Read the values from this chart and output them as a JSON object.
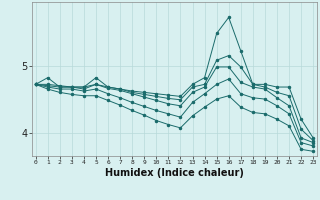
{
  "title": "",
  "xlabel": "Humidex (Indice chaleur)",
  "bg_color": "#d8f0f0",
  "grid_color": "#b8dada",
  "line_color": "#1a6b6b",
  "x": [
    0,
    1,
    2,
    3,
    4,
    5,
    6,
    7,
    8,
    9,
    10,
    11,
    12,
    13,
    14,
    15,
    16,
    17,
    18,
    19,
    20,
    21,
    22,
    23
  ],
  "line1": [
    4.72,
    4.82,
    4.68,
    4.68,
    4.68,
    4.82,
    4.68,
    4.65,
    4.62,
    4.6,
    4.58,
    4.56,
    4.54,
    4.72,
    4.82,
    5.48,
    5.72,
    5.22,
    4.72,
    4.72,
    4.68,
    4.68,
    4.2,
    3.92
  ],
  "line2": [
    4.72,
    4.72,
    4.7,
    4.68,
    4.68,
    4.72,
    4.68,
    4.65,
    4.6,
    4.57,
    4.54,
    4.51,
    4.49,
    4.68,
    4.72,
    5.08,
    5.15,
    4.98,
    4.72,
    4.68,
    4.6,
    4.55,
    4.05,
    3.88
  ],
  "line3": [
    4.72,
    4.7,
    4.68,
    4.68,
    4.65,
    4.72,
    4.66,
    4.63,
    4.58,
    4.53,
    4.48,
    4.43,
    4.4,
    4.6,
    4.68,
    4.98,
    4.98,
    4.75,
    4.68,
    4.65,
    4.52,
    4.4,
    3.92,
    3.85
  ],
  "line4": [
    4.72,
    4.68,
    4.65,
    4.65,
    4.62,
    4.65,
    4.58,
    4.52,
    4.45,
    4.39,
    4.33,
    4.28,
    4.23,
    4.45,
    4.58,
    4.72,
    4.8,
    4.58,
    4.52,
    4.5,
    4.4,
    4.28,
    3.85,
    3.8
  ],
  "line5": [
    4.72,
    4.65,
    4.6,
    4.57,
    4.55,
    4.55,
    4.48,
    4.41,
    4.33,
    4.26,
    4.18,
    4.12,
    4.07,
    4.25,
    4.38,
    4.5,
    4.55,
    4.38,
    4.3,
    4.28,
    4.2,
    4.1,
    3.75,
    3.72
  ],
  "ylim": [
    3.65,
    5.95
  ],
  "yticks": [
    4.0,
    5.0
  ],
  "xlim": [
    -0.3,
    23.3
  ]
}
